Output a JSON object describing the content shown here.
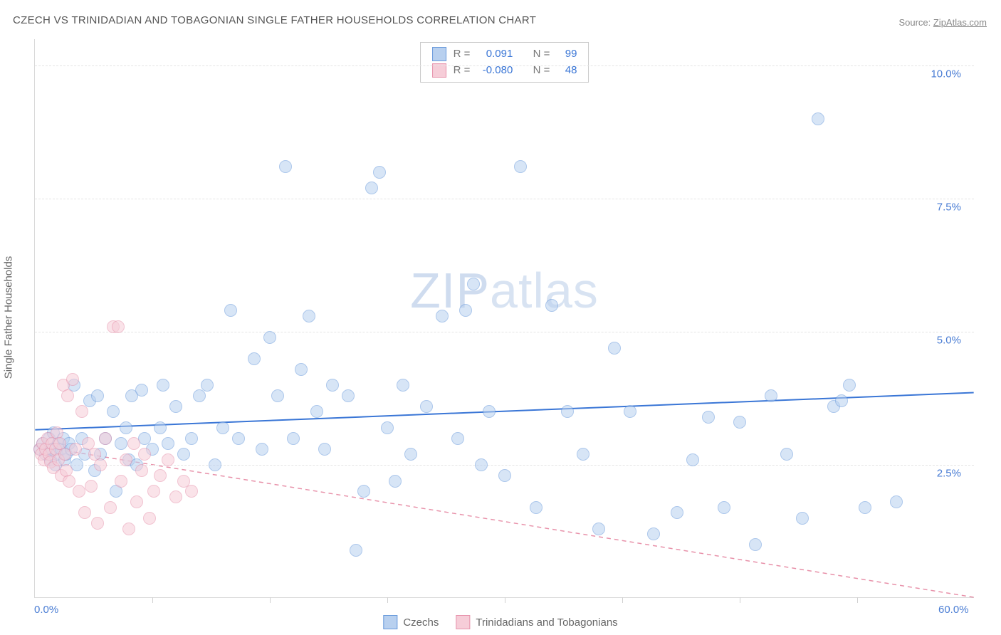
{
  "title": "CZECH VS TRINIDADIAN AND TOBAGONIAN SINGLE FATHER HOUSEHOLDS CORRELATION CHART",
  "source_prefix": "Source: ",
  "source_name": "ZipAtlas.com",
  "ylabel": "Single Father Households",
  "watermark": {
    "part1": "ZIP",
    "part2": "atlas"
  },
  "chart": {
    "type": "scatter",
    "xlim": [
      0,
      60
    ],
    "ylim": [
      0,
      10.5
    ],
    "background_color": "#ffffff",
    "grid_color": "#e4e4e4",
    "border_color": "#d8d8d8",
    "point_radius": 9,
    "point_opacity": 0.55,
    "yticks": [
      {
        "v": 2.5,
        "label": "2.5%"
      },
      {
        "v": 5.0,
        "label": "5.0%"
      },
      {
        "v": 7.5,
        "label": "7.5%"
      },
      {
        "v": 10.0,
        "label": "10.0%"
      }
    ],
    "xticks": [
      7.5,
      15,
      22.5,
      30,
      37.5,
      45,
      52.5
    ],
    "x_min_label": "0.0%",
    "x_max_label": "60.0%",
    "tick_label_color": "#4a7dd4",
    "axis_label_color": "#666666",
    "series": [
      {
        "name": "Czechs",
        "color_fill": "#b8d0ef",
        "color_stroke": "#6a9bdc",
        "trend_color": "#3a76d6",
        "trend_width": 2,
        "trend_dash": "none",
        "trend_y_start": 3.15,
        "trend_y_end": 3.85,
        "R": "0.091",
        "N": "99",
        "points": [
          [
            0.3,
            2.8
          ],
          [
            0.5,
            2.9
          ],
          [
            0.7,
            2.7
          ],
          [
            0.9,
            3.0
          ],
          [
            1.0,
            2.6
          ],
          [
            1.1,
            2.8
          ],
          [
            1.2,
            3.1
          ],
          [
            1.3,
            2.5
          ],
          [
            1.4,
            2.7
          ],
          [
            1.5,
            2.9
          ],
          [
            1.7,
            2.8
          ],
          [
            1.8,
            3.0
          ],
          [
            1.9,
            2.6
          ],
          [
            2.0,
            2.7
          ],
          [
            2.2,
            2.9
          ],
          [
            2.3,
            2.8
          ],
          [
            2.5,
            4.0
          ],
          [
            2.7,
            2.5
          ],
          [
            3.0,
            3.0
          ],
          [
            3.2,
            2.7
          ],
          [
            3.5,
            3.7
          ],
          [
            3.8,
            2.4
          ],
          [
            4.0,
            3.8
          ],
          [
            4.2,
            2.7
          ],
          [
            4.5,
            3.0
          ],
          [
            5.0,
            3.5
          ],
          [
            5.2,
            2.0
          ],
          [
            5.5,
            2.9
          ],
          [
            5.8,
            3.2
          ],
          [
            6.0,
            2.6
          ],
          [
            6.2,
            3.8
          ],
          [
            6.5,
            2.5
          ],
          [
            6.8,
            3.9
          ],
          [
            7.0,
            3.0
          ],
          [
            7.5,
            2.8
          ],
          [
            8.0,
            3.2
          ],
          [
            8.2,
            4.0
          ],
          [
            8.5,
            2.9
          ],
          [
            9.0,
            3.6
          ],
          [
            9.5,
            2.7
          ],
          [
            10,
            3.0
          ],
          [
            10.5,
            3.8
          ],
          [
            11,
            4.0
          ],
          [
            11.5,
            2.5
          ],
          [
            12,
            3.2
          ],
          [
            12.5,
            5.4
          ],
          [
            13,
            3.0
          ],
          [
            14,
            4.5
          ],
          [
            14.5,
            2.8
          ],
          [
            15,
            4.9
          ],
          [
            15.5,
            3.8
          ],
          [
            16,
            8.1
          ],
          [
            16.5,
            3.0
          ],
          [
            17,
            4.3
          ],
          [
            17.5,
            5.3
          ],
          [
            18,
            3.5
          ],
          [
            18.5,
            2.8
          ],
          [
            19,
            4.0
          ],
          [
            20,
            3.8
          ],
          [
            20.5,
            0.9
          ],
          [
            21,
            2.0
          ],
          [
            21.5,
            7.7
          ],
          [
            22,
            8.0
          ],
          [
            22.5,
            3.2
          ],
          [
            23,
            2.2
          ],
          [
            23.5,
            4.0
          ],
          [
            24,
            2.7
          ],
          [
            25,
            3.6
          ],
          [
            26,
            5.3
          ],
          [
            27,
            3.0
          ],
          [
            27.5,
            5.4
          ],
          [
            28,
            5.9
          ],
          [
            28.5,
            2.5
          ],
          [
            29,
            3.5
          ],
          [
            30,
            2.3
          ],
          [
            31,
            8.1
          ],
          [
            32,
            1.7
          ],
          [
            33,
            5.5
          ],
          [
            34,
            3.5
          ],
          [
            35,
            2.7
          ],
          [
            36,
            1.3
          ],
          [
            37,
            4.7
          ],
          [
            38,
            3.5
          ],
          [
            39.5,
            1.2
          ],
          [
            41,
            1.6
          ],
          [
            42,
            2.6
          ],
          [
            43,
            3.4
          ],
          [
            44,
            1.7
          ],
          [
            45,
            3.3
          ],
          [
            46,
            1.0
          ],
          [
            47,
            3.8
          ],
          [
            48,
            2.7
          ],
          [
            49,
            1.5
          ],
          [
            50,
            9.0
          ],
          [
            51,
            3.6
          ],
          [
            51.5,
            3.7
          ],
          [
            52,
            4.0
          ],
          [
            53,
            1.7
          ],
          [
            55,
            1.8
          ]
        ]
      },
      {
        "name": "Trinidadians and Tobagonians",
        "color_fill": "#f6cdd8",
        "color_stroke": "#e793ac",
        "trend_color": "#e892aa",
        "trend_width": 1.5,
        "trend_dash": "6,5",
        "trend_y_start": 2.85,
        "trend_y_end": 0.0,
        "R": "-0.080",
        "N": "48",
        "points": [
          [
            0.3,
            2.8
          ],
          [
            0.4,
            2.7
          ],
          [
            0.5,
            2.9
          ],
          [
            0.6,
            2.6
          ],
          [
            0.7,
            2.8
          ],
          [
            0.8,
            3.0
          ],
          [
            0.9,
            2.7
          ],
          [
            1.0,
            2.55
          ],
          [
            1.1,
            2.9
          ],
          [
            1.2,
            2.45
          ],
          [
            1.3,
            2.8
          ],
          [
            1.4,
            3.1
          ],
          [
            1.5,
            2.6
          ],
          [
            1.6,
            2.9
          ],
          [
            1.7,
            2.3
          ],
          [
            1.8,
            4.0
          ],
          [
            1.9,
            2.7
          ],
          [
            2.0,
            2.4
          ],
          [
            2.1,
            3.8
          ],
          [
            2.2,
            2.2
          ],
          [
            2.4,
            4.1
          ],
          [
            2.6,
            2.8
          ],
          [
            2.8,
            2.0
          ],
          [
            3.0,
            3.5
          ],
          [
            3.2,
            1.6
          ],
          [
            3.4,
            2.9
          ],
          [
            3.6,
            2.1
          ],
          [
            3.8,
            2.7
          ],
          [
            4.0,
            1.4
          ],
          [
            4.2,
            2.5
          ],
          [
            4.5,
            3.0
          ],
          [
            4.8,
            1.7
          ],
          [
            5.0,
            5.1
          ],
          [
            5.3,
            5.1
          ],
          [
            5.5,
            2.2
          ],
          [
            5.8,
            2.6
          ],
          [
            6.0,
            1.3
          ],
          [
            6.3,
            2.9
          ],
          [
            6.5,
            1.8
          ],
          [
            6.8,
            2.4
          ],
          [
            7.0,
            2.7
          ],
          [
            7.3,
            1.5
          ],
          [
            7.6,
            2.0
          ],
          [
            8.0,
            2.3
          ],
          [
            8.5,
            2.6
          ],
          [
            9.0,
            1.9
          ],
          [
            9.5,
            2.2
          ],
          [
            10,
            2.0
          ]
        ]
      }
    ]
  },
  "stats_labels": {
    "R": "R =",
    "N": "N ="
  },
  "legend": {
    "items": [
      {
        "label": "Czechs",
        "fill": "#b8d0ef",
        "stroke": "#6a9bdc"
      },
      {
        "label": "Trinidadians and Tobagonians",
        "fill": "#f6cdd8",
        "stroke": "#e793ac"
      }
    ]
  }
}
